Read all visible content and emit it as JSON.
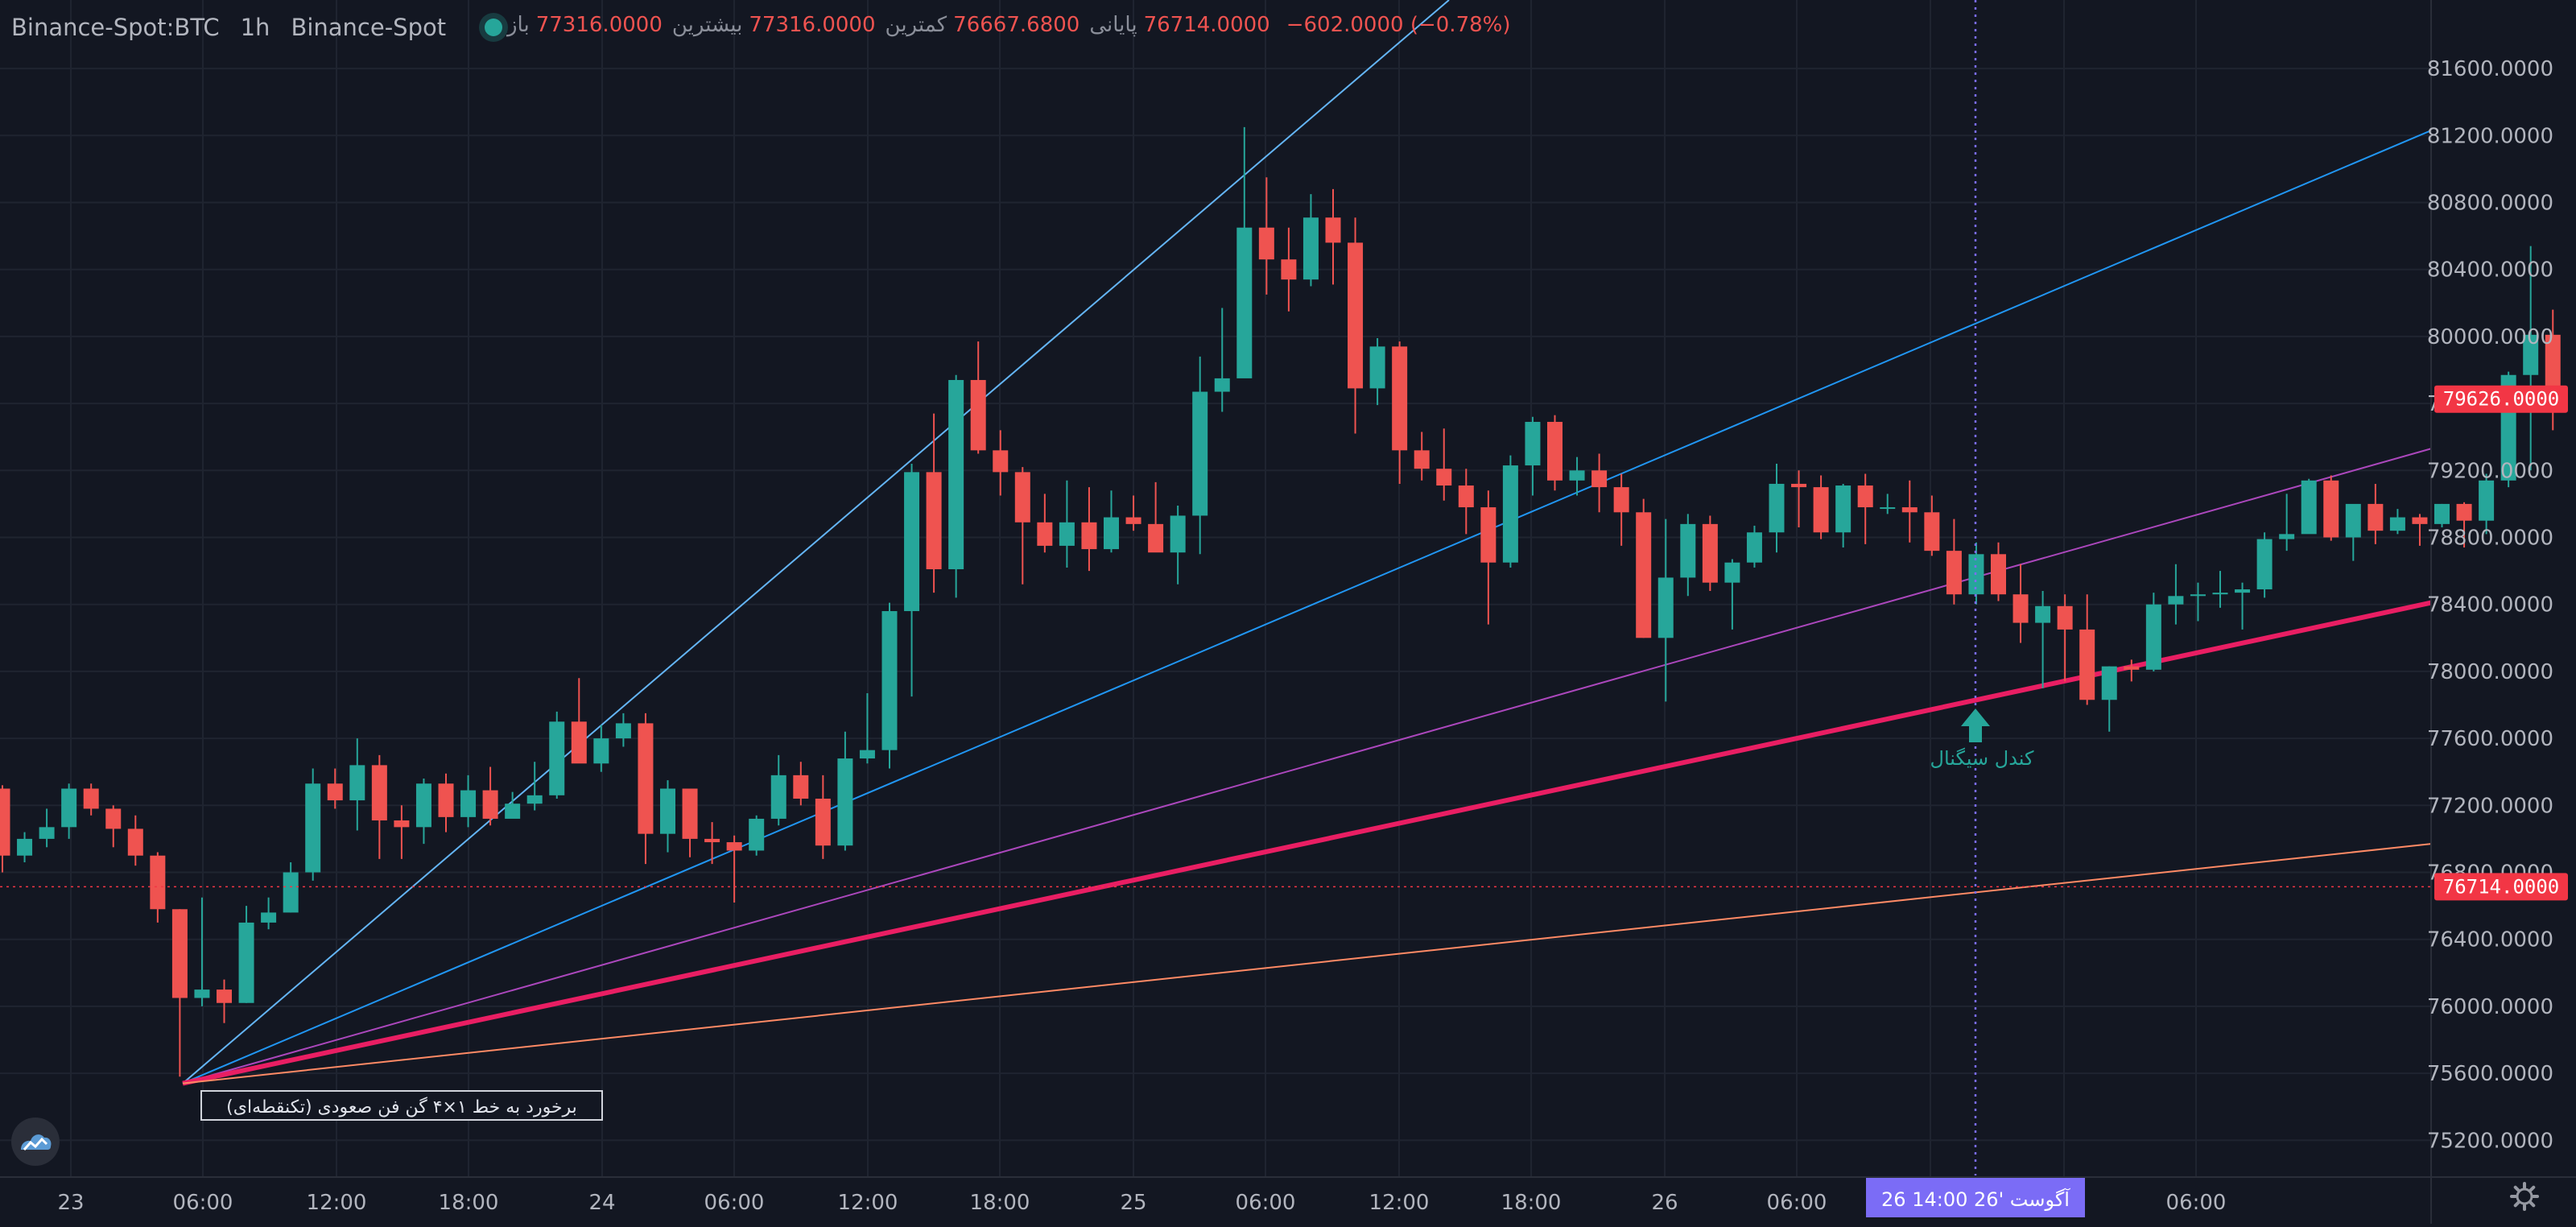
{
  "header": {
    "symbol": "Binance-Spot:BTC",
    "interval": "1h",
    "exchange": "Binance-Spot"
  },
  "ohlc": {
    "open_label": "باز",
    "open_value": "77316.0000",
    "high_label": "بیشترین",
    "high_value": "77316.0000",
    "low_label": "کمترین",
    "low_value": "76667.6800",
    "close_label": "پایانی",
    "close_value": "76714.0000",
    "change": "−602.0000 (−0.78%)"
  },
  "colors": {
    "background": "#131722",
    "up": "#26a69a",
    "down": "#ef5350",
    "grid": "#1f2430",
    "axis_text": "#b2b5be",
    "price_badge": "#f23645",
    "crosshair_badge": "#7b6cf6",
    "fan_1x1": "#64b5f6",
    "fan_1x2": "#2196f3",
    "fan_1x3": "#ab47bc",
    "fan_1x4": "#e91e63",
    "fan_1x8": "#ff8a65"
  },
  "price_axis": {
    "ticks": [
      "81600.0000",
      "81200.0000",
      "80800.0000",
      "80400.0000",
      "80000.0000",
      "79600.0000",
      "79200.0000",
      "78800.0000",
      "78400.0000",
      "78000.0000",
      "77600.0000",
      "77200.0000",
      "76800.0000",
      "76400.0000",
      "76000.0000",
      "75600.0000",
      "75200.0000"
    ],
    "last_price_badge": "79626.0000",
    "crosshair_price_badge": "76714.0000"
  },
  "time_axis": {
    "labels": [
      "23",
      "06:00",
      "12:00",
      "18:00",
      "24",
      "06:00",
      "12:00",
      "18:00",
      "25",
      "06:00",
      "12:00",
      "18:00",
      "26",
      "06:00",
      "",
      "27",
      "06:00"
    ],
    "crosshair_label": "26 آگوست '26   14:00"
  },
  "annotations": {
    "fan_note": "برخورد به خط ۱×۴ گن فن صعودی (تکنقطه‌ای)",
    "signal_candle": "کندل سیگنال"
  },
  "icons": {
    "settings": "gear-icon",
    "status": "market-open-dot-icon",
    "logo": "tradingview-logo-icon",
    "signal_arrow": "arrow-up-icon"
  },
  "chart_data": {
    "type": "candlestick",
    "interval": "1h",
    "ylim": [
      75000,
      81800
    ],
    "ticks_y": [
      81600,
      81200,
      80800,
      80400,
      80000,
      79600,
      79200,
      78800,
      78400,
      78000,
      77600,
      77200,
      76800,
      76400,
      76000,
      75600,
      75200
    ],
    "gann_fan_origin": {
      "time": "23 05:00",
      "price": 75540
    },
    "gann_fan_lines": [
      "1x1",
      "1x2",
      "1x3",
      "1x4",
      "1x8"
    ],
    "candles": [
      [
        77300,
        77320,
        76800,
        76900
      ],
      [
        76900,
        77040,
        76860,
        77000
      ],
      [
        77000,
        77180,
        76950,
        77070
      ],
      [
        77070,
        77330,
        77000,
        77300
      ],
      [
        77300,
        77330,
        77140,
        77180
      ],
      [
        77180,
        77200,
        76950,
        77060
      ],
      [
        77060,
        77140,
        76840,
        76900
      ],
      [
        76900,
        76920,
        76500,
        76580
      ],
      [
        76580,
        76580,
        75580,
        76050
      ],
      [
        76050,
        76650,
        76000,
        76100
      ],
      [
        76100,
        76160,
        75900,
        76020
      ],
      [
        76020,
        76600,
        76020,
        76500
      ],
      [
        76500,
        76650,
        76460,
        76560
      ],
      [
        76560,
        76860,
        76560,
        76800
      ],
      [
        76800,
        77420,
        76750,
        77330
      ],
      [
        77330,
        77420,
        77180,
        77230
      ],
      [
        77230,
        77600,
        77050,
        77440
      ],
      [
        77440,
        77500,
        76880,
        77110
      ],
      [
        77110,
        77200,
        76880,
        77070
      ],
      [
        77070,
        77360,
        76970,
        77330
      ],
      [
        77330,
        77390,
        77040,
        77130
      ],
      [
        77130,
        77380,
        77070,
        77290
      ],
      [
        77290,
        77430,
        77080,
        77120
      ],
      [
        77120,
        77280,
        77160,
        77210
      ],
      [
        77210,
        77460,
        77170,
        77260
      ],
      [
        77260,
        77760,
        77240,
        77700
      ],
      [
        77700,
        77960,
        77470,
        77450
      ],
      [
        77450,
        77680,
        77400,
        77600
      ],
      [
        77600,
        77750,
        77550,
        77690
      ],
      [
        77690,
        77750,
        76850,
        77030
      ],
      [
        77030,
        77350,
        76920,
        77300
      ],
      [
        77300,
        77300,
        76890,
        77000
      ],
      [
        77000,
        77100,
        76850,
        76980
      ],
      [
        76980,
        77020,
        76620,
        76930
      ],
      [
        76930,
        77140,
        76900,
        77120
      ],
      [
        77120,
        77500,
        77080,
        77380
      ],
      [
        77380,
        77460,
        77200,
        77240
      ],
      [
        77240,
        77380,
        76880,
        76960
      ],
      [
        76960,
        77640,
        76930,
        77480
      ],
      [
        77480,
        77870,
        77450,
        77530
      ],
      [
        77530,
        78410,
        77420,
        78360
      ],
      [
        78360,
        79240,
        77850,
        79190
      ],
      [
        79190,
        79540,
        78470,
        78610
      ],
      [
        78610,
        79770,
        78440,
        79740
      ],
      [
        79740,
        79970,
        79300,
        79320
      ],
      [
        79320,
        79440,
        79050,
        79190
      ],
      [
        79190,
        79220,
        78520,
        78890
      ],
      [
        78890,
        79060,
        78710,
        78750
      ],
      [
        78750,
        79140,
        78620,
        78890
      ],
      [
        78890,
        79100,
        78600,
        78730
      ],
      [
        78730,
        79080,
        78710,
        78920
      ],
      [
        78920,
        79050,
        78840,
        78880
      ],
      [
        78880,
        79130,
        78730,
        78710
      ],
      [
        78710,
        78990,
        78520,
        78930
      ],
      [
        78930,
        79880,
        78700,
        79670
      ],
      [
        79670,
        80170,
        79550,
        79750
      ],
      [
        79750,
        81250,
        79760,
        80650
      ],
      [
        80650,
        80950,
        80250,
        80460
      ],
      [
        80460,
        80650,
        80150,
        80340
      ],
      [
        80340,
        80850,
        80300,
        80710
      ],
      [
        80710,
        80880,
        80310,
        80560
      ],
      [
        80560,
        80710,
        79420,
        79690
      ],
      [
        79690,
        79990,
        79590,
        79940
      ],
      [
        79940,
        79970,
        79120,
        79320
      ],
      [
        79320,
        79430,
        79140,
        79210
      ],
      [
        79210,
        79450,
        79020,
        79110
      ],
      [
        79110,
        79210,
        78820,
        78980
      ],
      [
        78980,
        79080,
        78280,
        78650
      ],
      [
        78650,
        79290,
        78620,
        79230
      ],
      [
        79230,
        79520,
        79050,
        79490
      ],
      [
        79490,
        79530,
        79080,
        79140
      ],
      [
        79140,
        79280,
        79050,
        79200
      ],
      [
        79200,
        79300,
        78950,
        79100
      ],
      [
        79100,
        79180,
        78750,
        78950
      ],
      [
        78950,
        79030,
        78200,
        78200
      ],
      [
        78200,
        78910,
        77820,
        78560
      ],
      [
        78560,
        78940,
        78450,
        78880
      ],
      [
        78880,
        78930,
        78480,
        78530
      ],
      [
        78530,
        78670,
        78250,
        78650
      ],
      [
        78650,
        78870,
        78620,
        78830
      ],
      [
        78830,
        79240,
        78710,
        79120
      ],
      [
        79120,
        79200,
        78860,
        79100
      ],
      [
        79100,
        79170,
        78790,
        78830
      ],
      [
        78830,
        79120,
        78740,
        79110
      ],
      [
        79110,
        79180,
        78760,
        78980
      ],
      [
        78980,
        79060,
        78940,
        78980
      ],
      [
        78980,
        79140,
        78770,
        78950
      ],
      [
        78950,
        79050,
        78690,
        78720
      ],
      [
        78720,
        78910,
        78400,
        78460
      ],
      [
        78460,
        78770,
        78400,
        78700
      ],
      [
        78700,
        78770,
        78420,
        78460
      ],
      [
        78460,
        78640,
        78170,
        78290
      ],
      [
        78290,
        78480,
        77900,
        78390
      ],
      [
        78390,
        78460,
        77940,
        78250
      ],
      [
        78250,
        78460,
        77800,
        77830
      ],
      [
        77830,
        78030,
        77640,
        78030
      ],
      [
        78030,
        78070,
        77940,
        78010
      ],
      [
        78010,
        78470,
        78000,
        78400
      ],
      [
        78400,
        78640,
        78280,
        78450
      ],
      [
        78450,
        78530,
        78300,
        78460
      ],
      [
        78460,
        78600,
        78380,
        78470
      ],
      [
        78470,
        78530,
        78250,
        78490
      ],
      [
        78490,
        78830,
        78440,
        78790
      ],
      [
        78790,
        79060,
        78720,
        78820
      ],
      [
        78820,
        79150,
        78830,
        79140
      ],
      [
        79140,
        79170,
        78780,
        78800
      ],
      [
        78800,
        78990,
        78660,
        79000
      ],
      [
        79000,
        79120,
        78760,
        78840
      ],
      [
        78840,
        78970,
        78820,
        78920
      ],
      [
        78920,
        78940,
        78750,
        78880
      ],
      [
        78880,
        79000,
        78860,
        79000
      ],
      [
        79000,
        79010,
        78740,
        78900
      ],
      [
        78900,
        79180,
        78820,
        79140
      ],
      [
        79140,
        79790,
        79100,
        79770
      ],
      [
        79770,
        80540,
        79200,
        80010
      ],
      [
        80010,
        80160,
        79440,
        79630
      ]
    ]
  }
}
